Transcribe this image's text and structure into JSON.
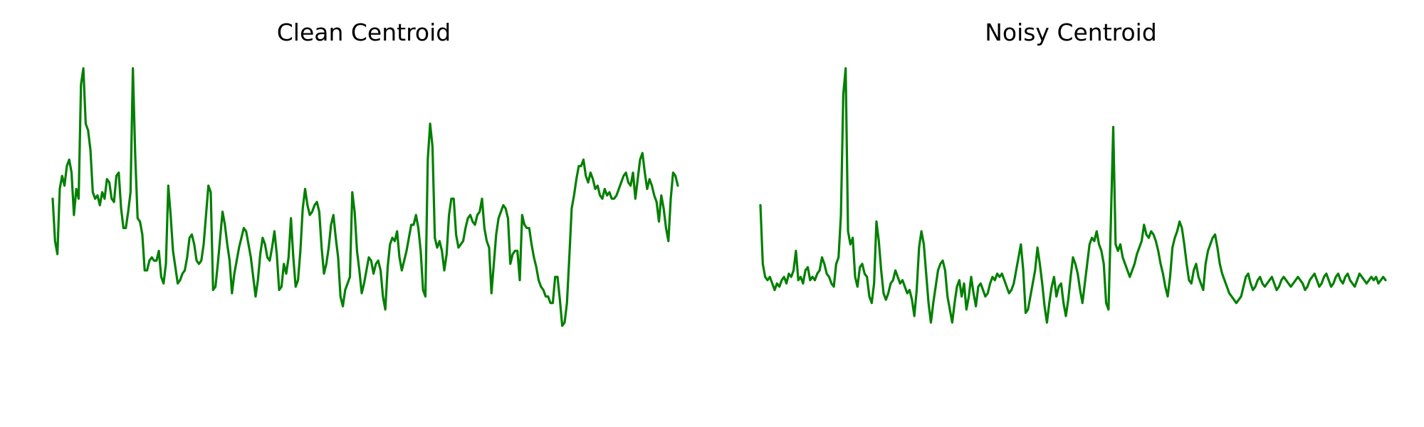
{
  "chart_data": [
    {
      "type": "line",
      "title": "Clean Centroid",
      "xlabel": "",
      "ylabel": "",
      "axes_visible": false,
      "grid": false,
      "line_color": "#008000",
      "x_range": [
        0,
        255
      ],
      "y_range": [
        0,
        1
      ],
      "series": [
        {
          "values": [
            0.6,
            0.47,
            0.43,
            0.63,
            0.67,
            0.64,
            0.7,
            0.72,
            0.68,
            0.55,
            0.63,
            0.6,
            0.95,
            1.0,
            0.83,
            0.81,
            0.75,
            0.62,
            0.6,
            0.61,
            0.58,
            0.62,
            0.6,
            0.66,
            0.65,
            0.6,
            0.59,
            0.67,
            0.68,
            0.57,
            0.51,
            0.51,
            0.56,
            0.62,
            1.0,
            0.73,
            0.54,
            0.53,
            0.49,
            0.38,
            0.38,
            0.41,
            0.42,
            0.41,
            0.41,
            0.44,
            0.36,
            0.34,
            0.4,
            0.64,
            0.55,
            0.44,
            0.39,
            0.34,
            0.35,
            0.37,
            0.38,
            0.42,
            0.48,
            0.49,
            0.46,
            0.41,
            0.4,
            0.41,
            0.46,
            0.55,
            0.64,
            0.62,
            0.32,
            0.33,
            0.4,
            0.48,
            0.56,
            0.52,
            0.46,
            0.41,
            0.31,
            0.37,
            0.41,
            0.45,
            0.48,
            0.51,
            0.5,
            0.46,
            0.42,
            0.36,
            0.3,
            0.35,
            0.43,
            0.48,
            0.46,
            0.42,
            0.41,
            0.45,
            0.5,
            0.43,
            0.32,
            0.33,
            0.4,
            0.37,
            0.42,
            0.54,
            0.42,
            0.33,
            0.35,
            0.44,
            0.57,
            0.63,
            0.58,
            0.55,
            0.56,
            0.58,
            0.59,
            0.56,
            0.45,
            0.37,
            0.4,
            0.45,
            0.52,
            0.55,
            0.48,
            0.42,
            0.3,
            0.27,
            0.32,
            0.34,
            0.36,
            0.62,
            0.56,
            0.44,
            0.38,
            0.31,
            0.34,
            0.38,
            0.42,
            0.41,
            0.37,
            0.4,
            0.41,
            0.38,
            0.3,
            0.26,
            0.39,
            0.46,
            0.48,
            0.47,
            0.5,
            0.42,
            0.38,
            0.41,
            0.44,
            0.48,
            0.52,
            0.52,
            0.55,
            0.51,
            0.44,
            0.32,
            0.3,
            0.72,
            0.83,
            0.76,
            0.48,
            0.45,
            0.47,
            0.44,
            0.38,
            0.43,
            0.55,
            0.6,
            0.6,
            0.49,
            0.45,
            0.46,
            0.47,
            0.51,
            0.54,
            0.55,
            0.53,
            0.52,
            0.55,
            0.56,
            0.6,
            0.51,
            0.47,
            0.45,
            0.31,
            0.4,
            0.49,
            0.54,
            0.56,
            0.58,
            0.57,
            0.54,
            0.4,
            0.43,
            0.44,
            0.44,
            0.35,
            0.55,
            0.52,
            0.51,
            0.51,
            0.46,
            0.42,
            0.39,
            0.35,
            0.33,
            0.32,
            0.3,
            0.3,
            0.28,
            0.28,
            0.36,
            0.36,
            0.29,
            0.21,
            0.22,
            0.28,
            0.42,
            0.57,
            0.61,
            0.66,
            0.7,
            0.7,
            0.72,
            0.67,
            0.65,
            0.68,
            0.66,
            0.63,
            0.64,
            0.61,
            0.6,
            0.63,
            0.61,
            0.62,
            0.6,
            0.6,
            0.61,
            0.63,
            0.65,
            0.67,
            0.68,
            0.65,
            0.64,
            0.68,
            0.6,
            0.66,
            0.72,
            0.74,
            0.68,
            0.63,
            0.66,
            0.64,
            0.61,
            0.59,
            0.53,
            0.61,
            0.57,
            0.51,
            0.47,
            0.6,
            0.68,
            0.67,
            0.64
          ]
        }
      ]
    },
    {
      "type": "line",
      "title": "Noisy Centroid",
      "xlabel": "",
      "ylabel": "",
      "axes_visible": false,
      "grid": false,
      "line_color": "#008000",
      "x_range": [
        0,
        255
      ],
      "y_range": [
        0,
        1
      ],
      "series": [
        {
          "values": [
            0.58,
            0.4,
            0.36,
            0.35,
            0.36,
            0.34,
            0.32,
            0.34,
            0.33,
            0.35,
            0.36,
            0.34,
            0.37,
            0.36,
            0.38,
            0.44,
            0.35,
            0.36,
            0.34,
            0.38,
            0.39,
            0.35,
            0.36,
            0.35,
            0.37,
            0.38,
            0.42,
            0.4,
            0.37,
            0.36,
            0.34,
            0.33,
            0.4,
            0.42,
            0.55,
            0.92,
            1.0,
            0.5,
            0.46,
            0.48,
            0.36,
            0.33,
            0.39,
            0.4,
            0.37,
            0.36,
            0.3,
            0.28,
            0.34,
            0.53,
            0.47,
            0.38,
            0.31,
            0.29,
            0.31,
            0.34,
            0.35,
            0.38,
            0.36,
            0.34,
            0.35,
            0.33,
            0.31,
            0.32,
            0.29,
            0.24,
            0.32,
            0.45,
            0.5,
            0.46,
            0.37,
            0.28,
            0.22,
            0.28,
            0.33,
            0.38,
            0.4,
            0.41,
            0.38,
            0.3,
            0.26,
            0.22,
            0.28,
            0.33,
            0.35,
            0.3,
            0.34,
            0.26,
            0.3,
            0.36,
            0.31,
            0.27,
            0.33,
            0.34,
            0.32,
            0.3,
            0.31,
            0.34,
            0.36,
            0.35,
            0.37,
            0.36,
            0.37,
            0.35,
            0.33,
            0.31,
            0.32,
            0.34,
            0.38,
            0.42,
            0.46,
            0.38,
            0.25,
            0.26,
            0.3,
            0.34,
            0.38,
            0.45,
            0.4,
            0.34,
            0.27,
            0.22,
            0.28,
            0.33,
            0.36,
            0.3,
            0.33,
            0.34,
            0.28,
            0.24,
            0.29,
            0.36,
            0.42,
            0.4,
            0.37,
            0.32,
            0.28,
            0.34,
            0.4,
            0.46,
            0.48,
            0.47,
            0.5,
            0.46,
            0.44,
            0.4,
            0.28,
            0.26,
            0.53,
            0.82,
            0.46,
            0.44,
            0.46,
            0.42,
            0.4,
            0.38,
            0.36,
            0.38,
            0.4,
            0.43,
            0.45,
            0.47,
            0.52,
            0.49,
            0.48,
            0.5,
            0.49,
            0.47,
            0.44,
            0.4,
            0.37,
            0.33,
            0.3,
            0.36,
            0.45,
            0.48,
            0.5,
            0.53,
            0.51,
            0.46,
            0.4,
            0.35,
            0.34,
            0.38,
            0.4,
            0.36,
            0.34,
            0.32,
            0.4,
            0.44,
            0.46,
            0.48,
            0.49,
            0.45,
            0.4,
            0.37,
            0.35,
            0.33,
            0.31,
            0.3,
            0.29,
            0.28,
            0.29,
            0.3,
            0.33,
            0.36,
            0.37,
            0.34,
            0.32,
            0.33,
            0.35,
            0.36,
            0.34,
            0.33,
            0.34,
            0.35,
            0.36,
            0.34,
            0.32,
            0.33,
            0.35,
            0.36,
            0.35,
            0.34,
            0.33,
            0.34,
            0.35,
            0.36,
            0.35,
            0.34,
            0.32,
            0.33,
            0.35,
            0.36,
            0.37,
            0.35,
            0.33,
            0.34,
            0.36,
            0.37,
            0.35,
            0.33,
            0.34,
            0.36,
            0.37,
            0.35,
            0.34,
            0.36,
            0.37,
            0.35,
            0.34,
            0.33,
            0.35,
            0.37,
            0.36,
            0.35,
            0.34,
            0.35,
            0.36,
            0.35,
            0.36,
            0.34,
            0.35,
            0.36,
            0.35
          ]
        }
      ]
    }
  ]
}
